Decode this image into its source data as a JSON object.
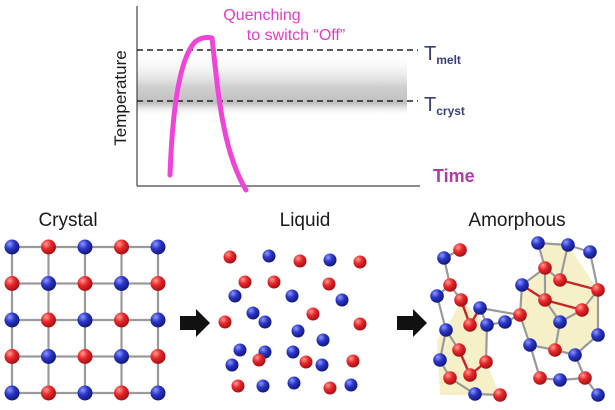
{
  "plot": {
    "ylabel": "Temperature",
    "xlabel": "Time",
    "annotation_line1": "Quenching",
    "annotation_line2": "to switch “Off”",
    "tmelt": {
      "main": "T",
      "sub": "melt"
    },
    "tcryst": {
      "main": "T",
      "sub": "cryst"
    }
  },
  "states": {
    "crystal": "Crystal",
    "liquid": "Liquid",
    "amorphous": "Amorphous"
  },
  "colors": {
    "pulse": "#ee44d8",
    "annotation": "#e03cc8",
    "labels": "#3a3f7a",
    "xlabel": "#b03aa6",
    "atom_red": "#e8262a",
    "atom_blue": "#2a35c8",
    "bond": "#9a9a9a",
    "region_fill": "#f6f0c8",
    "arrow": "#111111"
  }
}
